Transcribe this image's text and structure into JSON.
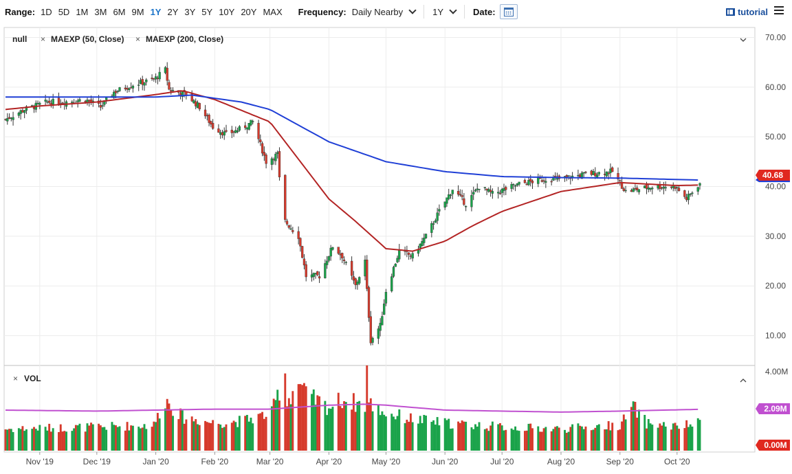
{
  "toolbar": {
    "range_label": "Range:",
    "ranges": [
      "1D",
      "5D",
      "1M",
      "3M",
      "6M",
      "9M",
      "1Y",
      "2Y",
      "3Y",
      "5Y",
      "10Y",
      "20Y",
      "MAX"
    ],
    "active_range": "1Y",
    "frequency_label": "Frequency:",
    "frequency_value": "Daily Nearby",
    "period_value": "1Y",
    "date_label": "Date:",
    "tutorial_label": "tutorial"
  },
  "legend": {
    "symbol": "null",
    "studies": [
      "MAEXP (50, Close)",
      "MAEXP (200, Close)"
    ],
    "volume_label": "VOL"
  },
  "colors": {
    "up": "#1aa34a",
    "down": "#d63a2c",
    "ma50": "#b32424",
    "ma200": "#1f3fd6",
    "vol_ma": "#c050d0",
    "price_tag": "#e0281f",
    "accent": "#1a73c9"
  },
  "chart_data": [
    {
      "type": "candlestick",
      "price_axis_ticks": [
        "70.00",
        "60.00",
        "50.00",
        "40.00",
        "30.00",
        "20.00",
        "10.00"
      ],
      "ylim": [
        4,
        72
      ],
      "x_labels": [
        "Nov '19",
        "Dec '19",
        "Jan '20",
        "Feb '20",
        "Mar '20",
        "Apr '20",
        "May '20",
        "Jun '20",
        "Jul '20",
        "Aug '20",
        "Sep '20",
        "Oct '20"
      ],
      "last_price": "40.68",
      "close_path": [
        [
          "2019-10-14",
          53.5
        ],
        [
          "2019-10-24",
          55.5
        ],
        [
          "2019-11-05",
          57.0
        ],
        [
          "2019-11-13",
          57.0
        ],
        [
          "2019-11-25",
          57.5
        ],
        [
          "2019-12-03",
          56.0
        ],
        [
          "2019-12-10",
          59.0
        ],
        [
          "2019-12-20",
          60.5
        ],
        [
          "2019-12-31",
          61.5
        ],
        [
          "2020-01-06",
          63.5
        ],
        [
          "2020-01-08",
          59.5
        ],
        [
          "2020-01-17",
          58.5
        ],
        [
          "2020-01-24",
          56.0
        ],
        [
          "2020-01-31",
          52.0
        ],
        [
          "2020-02-07",
          50.5
        ],
        [
          "2020-02-14",
          51.5
        ],
        [
          "2020-02-21",
          53.0
        ],
        [
          "2020-02-28",
          45.0
        ],
        [
          "2020-03-05",
          46.5
        ],
        [
          "2020-03-06",
          41.5
        ],
        [
          "2020-03-09",
          33.0
        ],
        [
          "2020-03-16",
          30.0
        ],
        [
          "2020-03-20",
          22.0
        ],
        [
          "2020-03-27",
          22.0
        ],
        [
          "2020-04-03",
          28.0
        ],
        [
          "2020-04-08",
          26.0
        ],
        [
          "2020-04-15",
          20.0
        ],
        [
          "2020-04-20",
          25.0
        ],
        [
          "2020-04-21",
          19.0
        ],
        [
          "2020-04-23",
          9.0
        ],
        [
          "2020-04-28",
          12.0
        ],
        [
          "2020-05-01",
          19.0
        ],
        [
          "2020-05-08",
          27.0
        ],
        [
          "2020-05-15",
          26.0
        ],
        [
          "2020-05-22",
          30.0
        ],
        [
          "2020-05-29",
          35.0
        ],
        [
          "2020-06-05",
          39.5
        ],
        [
          "2020-06-12",
          36.5
        ],
        [
          "2020-06-19",
          40.0
        ],
        [
          "2020-06-26",
          38.5
        ],
        [
          "2020-07-10",
          40.5
        ],
        [
          "2020-07-24",
          41.5
        ],
        [
          "2020-07-31",
          41.5
        ],
        [
          "2020-08-14",
          42.5
        ],
        [
          "2020-08-28",
          43.0
        ],
        [
          "2020-09-04",
          39.0
        ],
        [
          "2020-09-11",
          39.5
        ],
        [
          "2020-09-18",
          40.0
        ],
        [
          "2020-09-30",
          40.0
        ],
        [
          "2020-10-06",
          37.5
        ],
        [
          "2020-10-13",
          40.7
        ]
      ],
      "series": [
        {
          "name": "MAEXP (50, Close)",
          "values": [
            [
              "2019-10-14",
              55.5
            ],
            [
              "2019-11-01",
              56.2
            ],
            [
              "2019-12-01",
              57.0
            ],
            [
              "2020-01-01",
              58.5
            ],
            [
              "2020-01-15",
              59.3
            ],
            [
              "2020-02-01",
              57.5
            ],
            [
              "2020-03-01",
              53.0
            ],
            [
              "2020-03-15",
              46.0
            ],
            [
              "2020-04-01",
              37.5
            ],
            [
              "2020-04-15",
              33.0
            ],
            [
              "2020-05-01",
              27.5
            ],
            [
              "2020-05-15",
              27.0
            ],
            [
              "2020-06-01",
              29.0
            ],
            [
              "2020-06-15",
              32.0
            ],
            [
              "2020-07-01",
              35.0
            ],
            [
              "2020-08-01",
              39.0
            ],
            [
              "2020-09-01",
              40.8
            ],
            [
              "2020-09-15",
              40.5
            ],
            [
              "2020-10-01",
              40.2
            ],
            [
              "2020-10-13",
              40.3
            ]
          ]
        },
        {
          "name": "MAEXP (200, Close)",
          "values": [
            [
              "2019-10-14",
              58.0
            ],
            [
              "2020-01-01",
              58.0
            ],
            [
              "2020-01-20",
              58.4
            ],
            [
              "2020-02-15",
              57.0
            ],
            [
              "2020-03-01",
              55.5
            ],
            [
              "2020-04-01",
              49.0
            ],
            [
              "2020-05-01",
              45.0
            ],
            [
              "2020-06-01",
              43.0
            ],
            [
              "2020-07-01",
              42.0
            ],
            [
              "2020-08-01",
              41.8
            ],
            [
              "2020-09-01",
              41.7
            ],
            [
              "2020-10-13",
              41.3
            ]
          ]
        }
      ]
    },
    {
      "type": "bar",
      "title": "VOL",
      "volume_axis_ticks": [
        "4.00M",
        "0.00M"
      ],
      "ylim": [
        0,
        4.1
      ],
      "vol_ma_value": "2.09M",
      "volume_path": [
        [
          "2019-10-14",
          1.1
        ],
        [
          "2019-12-01",
          1.2
        ],
        [
          "2019-12-31",
          1.3
        ],
        [
          "2020-01-06",
          2.6
        ],
        [
          "2020-01-15",
          1.7
        ],
        [
          "2020-02-01",
          1.4
        ],
        [
          "2020-02-15",
          1.5
        ],
        [
          "2020-03-02",
          1.9
        ],
        [
          "2020-03-09",
          4.0
        ],
        [
          "2020-03-10",
          2.5
        ],
        [
          "2020-03-16",
          3.5
        ],
        [
          "2020-03-20",
          2.8
        ],
        [
          "2020-04-01",
          2.2
        ],
        [
          "2020-04-08",
          2.6
        ],
        [
          "2020-04-20",
          2.3
        ],
        [
          "2020-04-21",
          4.2
        ],
        [
          "2020-04-22",
          2.4
        ],
        [
          "2020-05-01",
          1.9
        ],
        [
          "2020-05-15",
          1.6
        ],
        [
          "2020-06-01",
          1.4
        ],
        [
          "2020-07-01",
          1.2
        ],
        [
          "2020-08-01",
          1.1
        ],
        [
          "2020-09-01",
          1.3
        ],
        [
          "2020-09-08",
          2.2
        ],
        [
          "2020-09-15",
          1.4
        ],
        [
          "2020-10-01",
          1.2
        ],
        [
          "2020-10-13",
          1.4
        ]
      ],
      "series": [
        {
          "name": "",
          "values": [
            [
              "2019-10-14",
              2.05
            ],
            [
              "2019-12-01",
              2.0
            ],
            [
              "2020-01-01",
              2.05
            ],
            [
              "2020-02-01",
              2.1
            ],
            [
              "2020-03-01",
              2.1
            ],
            [
              "2020-04-01",
              2.3
            ],
            [
              "2020-04-20",
              2.35
            ],
            [
              "2020-05-01",
              2.3
            ],
            [
              "2020-06-01",
              2.05
            ],
            [
              "2020-07-01",
              2.0
            ],
            [
              "2020-08-01",
              1.95
            ],
            [
              "2020-09-01",
              2.0
            ],
            [
              "2020-10-13",
              2.09
            ]
          ]
        }
      ]
    }
  ]
}
